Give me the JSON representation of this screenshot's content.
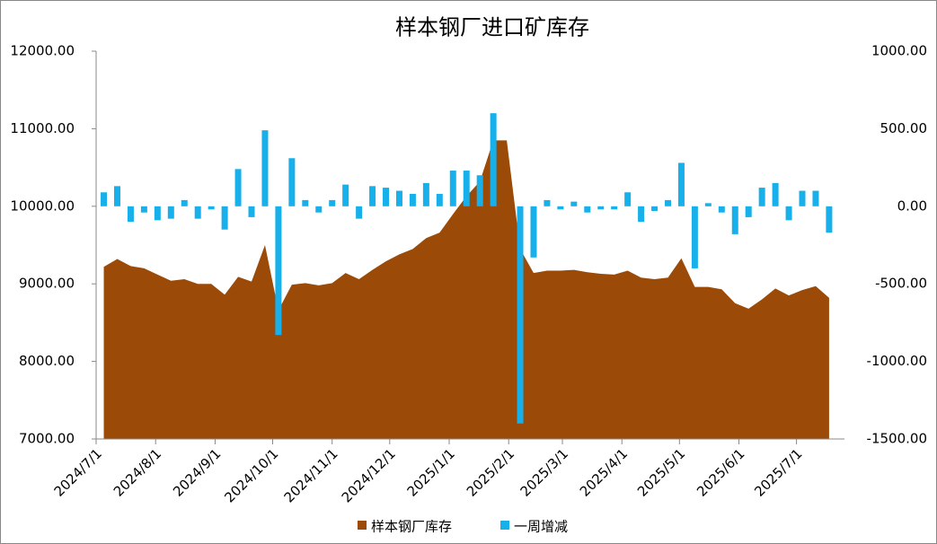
{
  "chart_data": {
    "type": "combo",
    "title": "样本钢厂进口矿库存",
    "x": [
      "2024/7/5",
      "2024/7/12",
      "2024/7/19",
      "2024/7/26",
      "2024/8/2",
      "2024/8/9",
      "2024/8/16",
      "2024/8/23",
      "2024/8/30",
      "2024/9/6",
      "2024/9/13",
      "2024/9/20",
      "2024/9/27",
      "2024/10/4",
      "2024/10/11",
      "2024/10/18",
      "2024/10/25",
      "2024/11/1",
      "2024/11/8",
      "2024/11/15",
      "2024/11/22",
      "2024/11/29",
      "2024/12/6",
      "2024/12/13",
      "2024/12/20",
      "2024/12/27",
      "2025/1/3",
      "2025/1/10",
      "2025/1/17",
      "2025/1/24",
      "2025/1/31",
      "2025/2/7",
      "2025/2/14",
      "2025/2/21",
      "2025/2/28",
      "2025/3/7",
      "2025/3/14",
      "2025/3/21",
      "2025/3/28",
      "2025/4/4",
      "2025/4/11",
      "2025/4/18",
      "2025/4/25",
      "2025/5/2",
      "2025/5/9",
      "2025/5/16",
      "2025/5/23",
      "2025/5/30",
      "2025/6/6",
      "2025/6/13",
      "2025/6/20",
      "2025/6/27",
      "2025/7/4",
      "2025/7/11",
      "2025/7/18"
    ],
    "series": [
      {
        "name": "样本钢厂库存",
        "color": "#9b4a07",
        "type": "area",
        "values": [
          9220,
          9320,
          9230,
          9200,
          9120,
          9040,
          9060,
          9000,
          9000,
          8860,
          9090,
          9030,
          9500,
          8660,
          8990,
          9010,
          8980,
          9010,
          9140,
          9060,
          9180,
          9290,
          9380,
          9450,
          9590,
          9660,
          9900,
          10130,
          10320,
          10850,
          10850,
          9450,
          9140,
          9170,
          9170,
          9180,
          9150,
          9130,
          9120,
          9170,
          9080,
          9060,
          9080,
          9330,
          8960,
          8960,
          8930,
          8750,
          8680,
          8800,
          8940,
          8850,
          8920,
          8970,
          8820
        ]
      },
      {
        "name": "一周增减",
        "color": "#17b0ea",
        "type": "bar",
        "axis": "y2",
        "values": [
          90,
          130,
          -100,
          -40,
          -90,
          -80,
          40,
          -80,
          -20,
          -150,
          240,
          -70,
          490,
          -830,
          310,
          40,
          -40,
          40,
          140,
          -80,
          130,
          120,
          100,
          80,
          150,
          80,
          230,
          230,
          200,
          600,
          null,
          -1400,
          -330,
          40,
          -20,
          30,
          -40,
          -20,
          -20,
          90,
          -100,
          -30,
          40,
          280,
          -400,
          20,
          -40,
          -180,
          -70,
          120,
          150,
          -90,
          100,
          100,
          -170
        ]
      }
    ],
    "xlim": [
      "2024/7/1",
      "2025/7/26"
    ],
    "xticks": [
      "2024/7/1",
      "2024/8/1",
      "2024/9/1",
      "2024/10/1",
      "2024/11/1",
      "2024/12/1",
      "2025/1/1",
      "2025/2/1",
      "2025/3/1",
      "2025/4/1",
      "2025/5/1",
      "2025/6/1",
      "2025/7/1"
    ],
    "ylim": [
      7000,
      12000
    ],
    "yticks": [
      {
        "value": 7000,
        "label": "7000.00"
      },
      {
        "value": 8000,
        "label": "8000.00"
      },
      {
        "value": 9000,
        "label": "9000.00"
      },
      {
        "value": 10000,
        "label": "10000.00"
      },
      {
        "value": 11000,
        "label": "11000.00"
      },
      {
        "value": 12000,
        "label": "12000.00"
      }
    ],
    "y2lim": [
      -1500,
      1000
    ],
    "y2ticks": [
      {
        "value": -1500,
        "label": "-1500.00"
      },
      {
        "value": -1000,
        "label": "-1000.00"
      },
      {
        "value": -500,
        "label": "-500.00"
      },
      {
        "value": 0,
        "label": "0.00"
      },
      {
        "value": 500,
        "label": "500.00"
      },
      {
        "value": 1000,
        "label": "1000.00"
      }
    ],
    "legend": "bottom"
  }
}
